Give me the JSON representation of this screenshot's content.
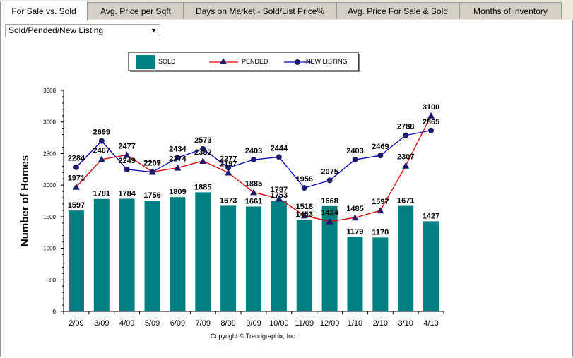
{
  "tabs": [
    {
      "label": "For Sale vs. Sold",
      "active": true
    },
    {
      "label": "Avg. Price per Sqft",
      "active": false
    },
    {
      "label": "Days on Market - Sold/List Price%",
      "active": false
    },
    {
      "label": "Avg. Price For Sale & Sold",
      "active": false
    },
    {
      "label": "Months of inventory",
      "active": false
    }
  ],
  "dropdown": {
    "selected": "Sold/Pended/New Listing"
  },
  "colors": {
    "sold": "#008080",
    "pended_line": "#e00000",
    "new_listing_line": "#0000c0",
    "marker": "#1a1a6e"
  },
  "chart_data": {
    "type": "bar",
    "ylabel": "Number of Homes",
    "ylim": [
      0,
      3500
    ],
    "yticks": [
      0,
      500,
      1000,
      1500,
      2000,
      2500,
      3000,
      3500
    ],
    "categories": [
      "2/09",
      "3/09",
      "4/09",
      "5/09",
      "6/09",
      "7/09",
      "8/09",
      "9/09",
      "10/09",
      "11/09",
      "12/09",
      "1/10",
      "2/10",
      "3/10",
      "4/10"
    ],
    "series": [
      {
        "name": "SOLD",
        "kind": "bar",
        "values": [
          1597,
          1781,
          1784,
          1756,
          1809,
          1885,
          1673,
          1661,
          1753,
          1453,
          1668,
          1179,
          1170,
          1671,
          1427
        ]
      },
      {
        "name": "PENDED",
        "kind": "line-triangle",
        "values": [
          1971,
          2407,
          2477,
          2209,
          2274,
          2382,
          2197,
          1885,
          1787,
          1518,
          1424,
          1485,
          1597,
          2307,
          3100
        ]
      },
      {
        "name": "NEW LISTING",
        "kind": "line-circle",
        "values": [
          2284,
          2699,
          2249,
          2207,
          2434,
          2573,
          2277,
          2403,
          2444,
          1956,
          2075,
          2403,
          2469,
          2788,
          2865
        ]
      }
    ],
    "legend": "top",
    "footnote": "Copyright © Trendgraphix, Inc."
  }
}
